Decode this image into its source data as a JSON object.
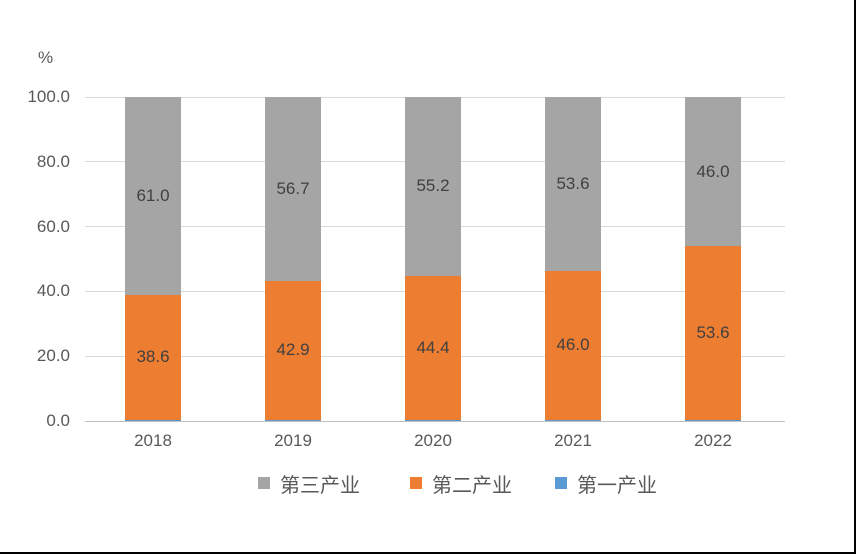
{
  "chart_data": {
    "type": "bar",
    "stacked": true,
    "title": "",
    "unit_label": "%",
    "categories": [
      "2018",
      "2019",
      "2020",
      "2021",
      "2022"
    ],
    "series": [
      {
        "key": "primary",
        "name": "第一产业",
        "color": "#5B9BD5",
        "values": [
          0.4,
          0.4,
          0.4,
          0.4,
          0.4
        ],
        "show_labels": false
      },
      {
        "key": "secondary",
        "name": "第二产业",
        "color": "#ED7D31",
        "values": [
          38.6,
          42.9,
          44.4,
          46.0,
          53.6
        ],
        "show_labels": true
      },
      {
        "key": "tertiary",
        "name": "第三产业",
        "color": "#A5A5A5",
        "values": [
          61.0,
          56.7,
          55.2,
          53.6,
          46.0
        ],
        "show_labels": true
      }
    ],
    "ylim": [
      0,
      100
    ],
    "y_ticks": [
      "0.0",
      "20.0",
      "40.0",
      "60.0",
      "80.0",
      "100.0"
    ],
    "grid": true,
    "legend_position": "bottom",
    "legend": [
      {
        "key": "tertiary",
        "label": "第三产业",
        "color": "#A5A5A5"
      },
      {
        "key": "secondary",
        "label": "第二产业",
        "color": "#ED7D31"
      },
      {
        "key": "primary",
        "label": "第一产业",
        "color": "#5B9BD5"
      }
    ],
    "colors": {
      "data_label": "#404040",
      "axis_text": "#595959",
      "gridline": "#D9D9D9",
      "axis_line": "#BFBFBF",
      "frame_border": "#000000"
    }
  }
}
